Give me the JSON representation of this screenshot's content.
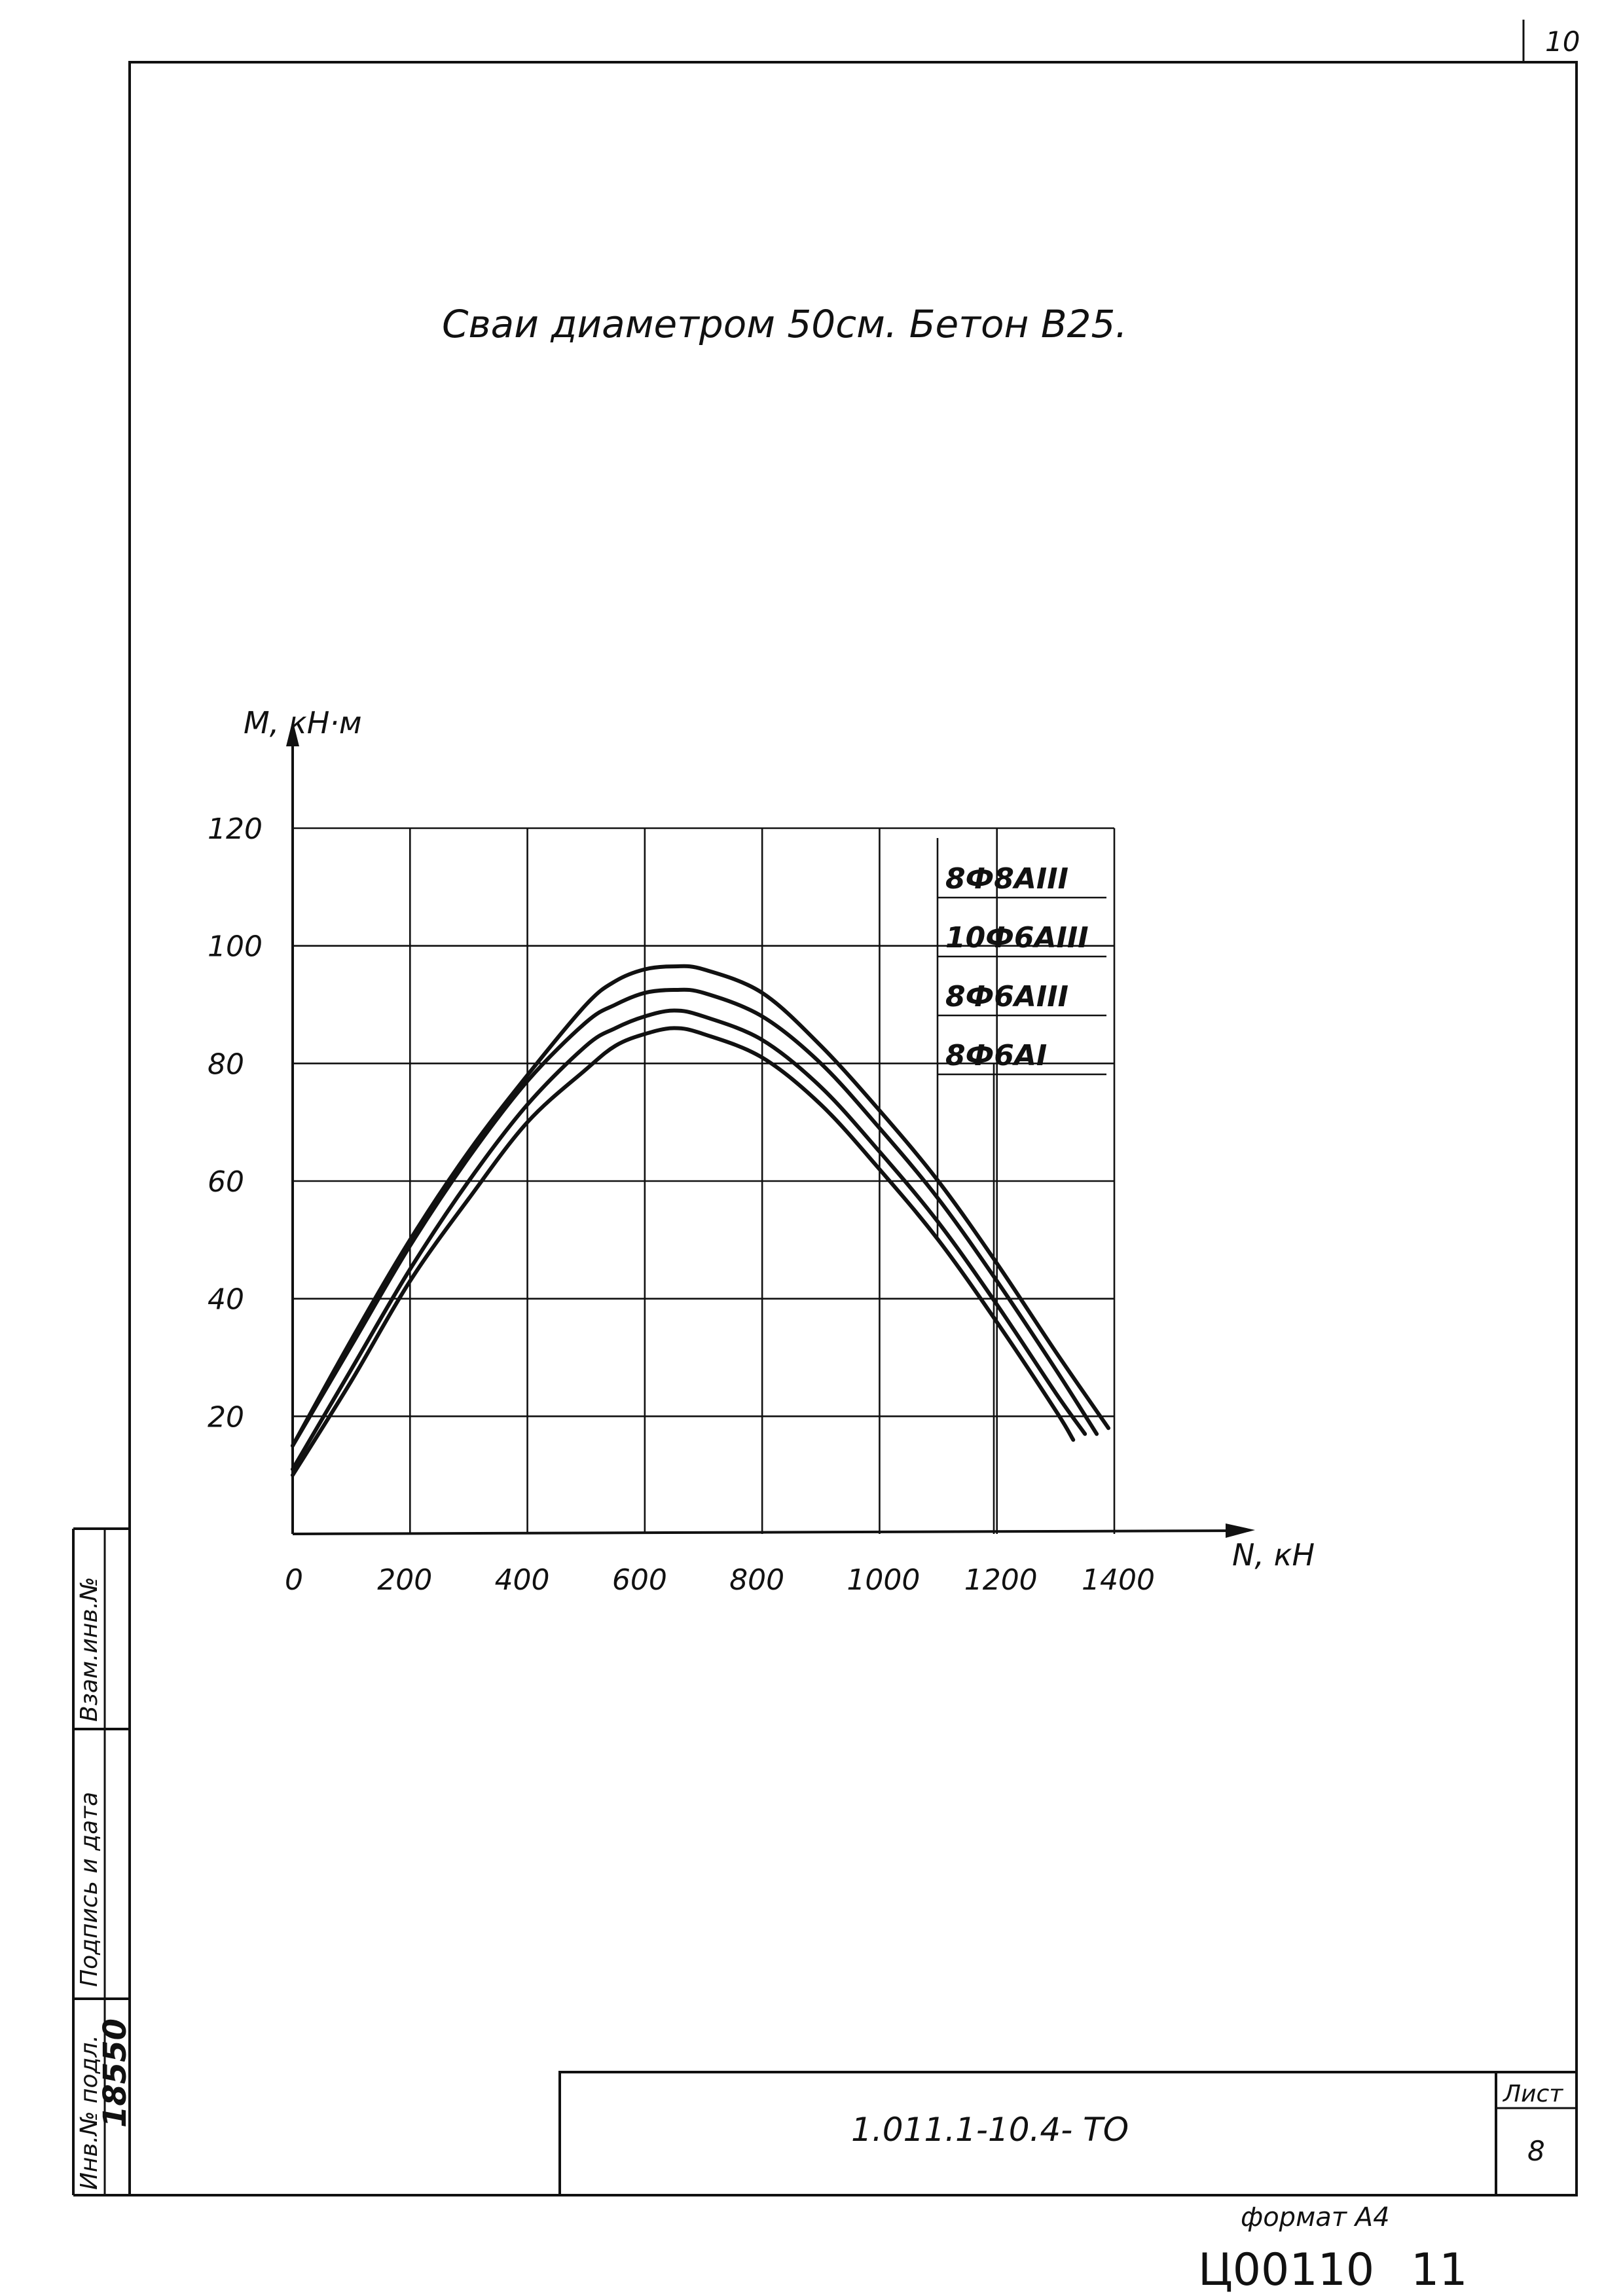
{
  "sheet_corner_number": "10",
  "title": "Сваи диаметром 50см. Бетон В25.",
  "stamp": {
    "doc_code": "1.011.1-10.4- ТО",
    "sheet_label": "Лист",
    "sheet_number": "8"
  },
  "side_labels": {
    "inv_no_orig": "Инв.№ подл.",
    "signature_date": "Подпись и дата",
    "replace_inv": "Взам.инв.№",
    "inv_value": "18550"
  },
  "format_label": "формат А4",
  "bottom_code": "Ц00110",
  "bottom_number": "11",
  "chart_data": {
    "type": "line",
    "xlabel": "N, кН",
    "ylabel": "М, кН·м",
    "xlim": [
      0,
      1400
    ],
    "ylim": [
      0,
      120
    ],
    "x_ticks": [
      0,
      200,
      400,
      600,
      800,
      1000,
      1200,
      1400
    ],
    "x_tick_labels": [
      "0",
      "200",
      "400",
      "600",
      "800",
      "1000",
      "1200",
      "1400"
    ],
    "y_ticks": [
      20,
      40,
      60,
      80,
      100,
      120
    ],
    "y_tick_labels": [
      "20",
      "40",
      "60",
      "80",
      "100",
      "120"
    ],
    "grid": true,
    "legend_position": "top-right",
    "series": [
      {
        "name": "8Ф8АIII",
        "x": [
          0,
          100,
          200,
          300,
          400,
          500,
          550,
          600,
          650,
          700,
          800,
          900,
          1000,
          1100,
          1200,
          1300,
          1390
        ],
        "y": [
          15,
          33,
          50,
          65,
          78,
          90,
          94,
          96,
          96.5,
          96,
          92,
          83,
          72,
          60,
          46,
          31,
          18
        ]
      },
      {
        "name": "10Ф6АIII",
        "x": [
          0,
          100,
          200,
          300,
          400,
          500,
          550,
          600,
          650,
          700,
          800,
          900,
          1000,
          1100,
          1200,
          1300,
          1370
        ],
        "y": [
          15,
          32,
          49,
          64,
          77,
          87,
          90,
          92,
          92.5,
          92,
          88,
          80,
          69,
          57,
          43,
          28,
          17
        ]
      },
      {
        "name": "8Ф6АIII",
        "x": [
          0,
          100,
          200,
          300,
          400,
          500,
          550,
          600,
          650,
          700,
          800,
          900,
          1000,
          1100,
          1200,
          1300,
          1350
        ],
        "y": [
          11,
          28,
          45,
          60,
          73,
          83,
          86,
          88,
          89,
          88,
          84,
          76,
          65,
          53,
          39,
          24,
          17
        ]
      },
      {
        "name": "8Ф6АI",
        "x": [
          0,
          100,
          200,
          300,
          400,
          500,
          550,
          600,
          650,
          700,
          800,
          900,
          1000,
          1100,
          1200,
          1300,
          1330
        ],
        "y": [
          10,
          26,
          43,
          57,
          70,
          79,
          83,
          85,
          86,
          85,
          81,
          73,
          62,
          50,
          36,
          21,
          16
        ]
      }
    ]
  }
}
